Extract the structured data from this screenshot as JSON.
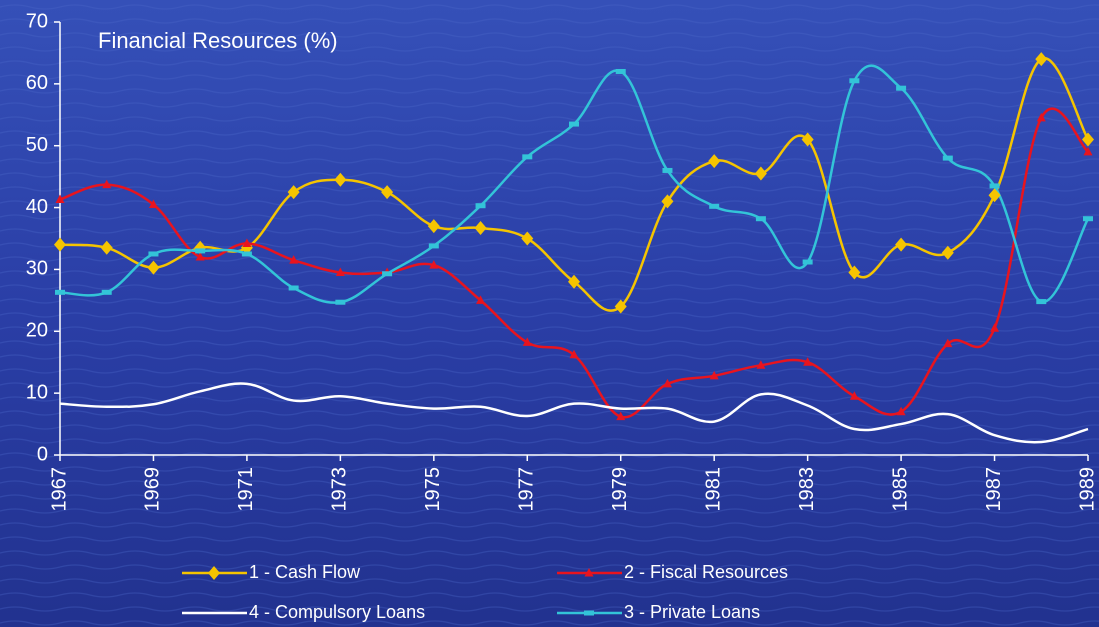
{
  "chart_data": {
    "type": "line",
    "title": "Financial Resources (%)",
    "x": [
      1967,
      1968,
      1969,
      1970,
      1971,
      1972,
      1973,
      1974,
      1975,
      1976,
      1977,
      1978,
      1979,
      1980,
      1981,
      1982,
      1983,
      1984,
      1985,
      1986,
      1987,
      1988,
      1989
    ],
    "xlim": [
      1967,
      1989
    ],
    "xticks": [
      1967,
      1969,
      1971,
      1973,
      1975,
      1977,
      1979,
      1981,
      1983,
      1985,
      1987,
      1989
    ],
    "ylim": [
      0,
      70
    ],
    "yticks": [
      0,
      10,
      20,
      30,
      40,
      50,
      60,
      70
    ],
    "series": [
      {
        "name": "1 - Cash Flow",
        "color": "#f5c400",
        "marker": "diamond",
        "values": [
          34,
          33.5,
          30.3,
          33.5,
          33.5,
          42.5,
          44.5,
          42.5,
          37,
          36.7,
          35,
          28,
          24,
          41,
          47.5,
          45.5,
          51,
          29.5,
          34,
          32.7,
          42,
          64,
          51
        ]
      },
      {
        "name": "2 - Fiscal Resources",
        "color": "#e8141e",
        "marker": "triangle",
        "values": [
          41.3,
          43.7,
          40.5,
          32,
          34.2,
          31.5,
          29.5,
          29.5,
          30.7,
          25,
          18.2,
          16.2,
          6.2,
          11.5,
          12.8,
          14.5,
          15,
          9.5,
          7,
          18,
          20.5,
          54.5,
          49
        ]
      },
      {
        "name": "4 - Compulsory Loans",
        "color": "#ffffff",
        "marker": "none",
        "values": [
          8.3,
          7.8,
          8.2,
          10.3,
          11.5,
          8.8,
          9.5,
          8.3,
          7.5,
          7.8,
          6.3,
          8.3,
          7.5,
          7.5,
          5.4,
          9.8,
          8,
          4.2,
          5,
          6.6,
          3.2,
          2.1,
          4.2
        ]
      },
      {
        "name": "3 - Private Loans",
        "color": "#33c4d8",
        "marker": "dash",
        "values": [
          26.3,
          26.3,
          32.5,
          33,
          32.5,
          27,
          24.7,
          29.3,
          33.8,
          40.3,
          48.2,
          53.5,
          62,
          46,
          40.2,
          38.2,
          31.2,
          60.5,
          59.3,
          48,
          43.5,
          24.8,
          38.2
        ]
      }
    ]
  }
}
